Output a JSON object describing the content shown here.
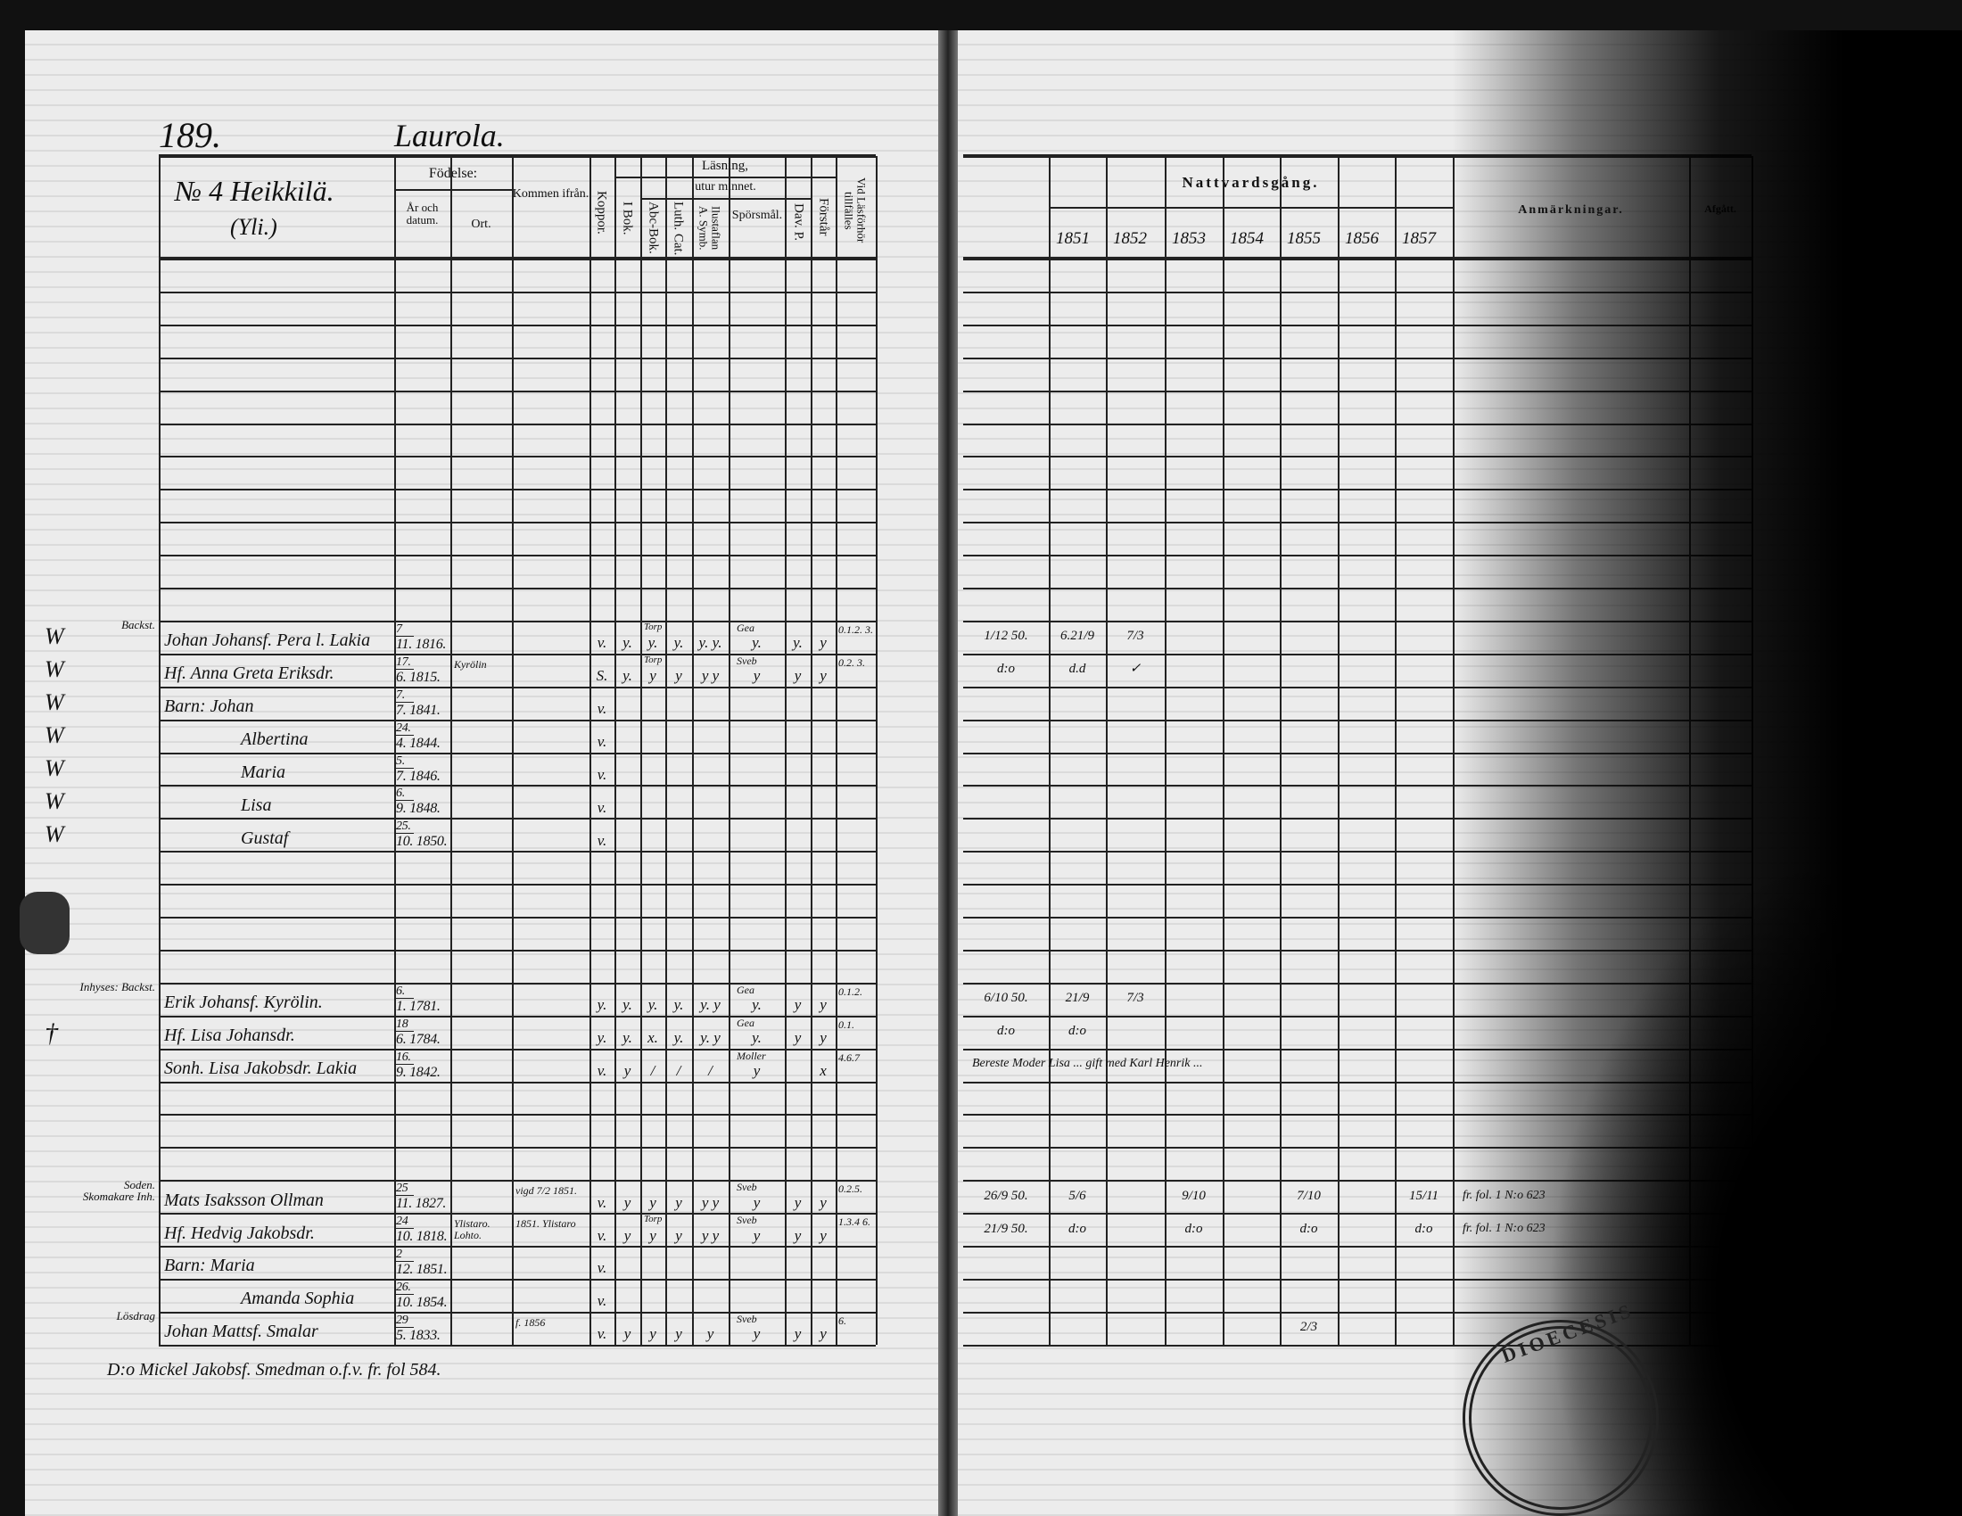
{
  "header": {
    "page_number": "189.",
    "parish_section": "Laurola.",
    "farm": "№ 4 Heikkilä.",
    "farm_sub": "(Yli.)"
  },
  "left_columns": {
    "fodelse": "Födelse:",
    "ar_och_datum": "År och datum.",
    "ort": "Ort.",
    "kommen_ifran": "Kommen ifrån.",
    "koppor": "Koppor.",
    "lasning": "Läsning,",
    "utur_minnet": "utur minnet.",
    "i_bok": "I Bok.",
    "abc_bok": "Abc-Bok.",
    "luth_cat": "Luth. Cat.",
    "ilustaflan": "Ilustaflan A. Symb.",
    "sporsmal": "Spörsmål.",
    "dav_p": "Dav. P.",
    "forstar": "Förstår",
    "vid_lasforhor": "Vid Läsförhör tillfälles"
  },
  "right_columns": {
    "nattvardsgang": "Nattvardsgång.",
    "years": [
      "1851",
      "1852",
      "1853",
      "1854",
      "1855",
      "1856",
      "1857"
    ],
    "anmarkningar": "Anmärkningar.",
    "afgatt": "Afgått."
  },
  "rows": [
    {
      "mark": "W",
      "role": "Backst.",
      "name": "Johan Johansf. Pera l. Lakia",
      "day": "7",
      "month_year": "11. 1816.",
      "ort": "",
      "from": "",
      "koppor": "v.",
      "reading": [
        "y.",
        "y.",
        "y.",
        "y. y.",
        "y.",
        "y.",
        "y"
      ],
      "notes_small": [
        "Torp",
        "Gea"
      ],
      "tillfalle": "0.1.2. 3.",
      "nattvard": [
        "1/12 50.",
        "6.21/9",
        "7/3",
        "",
        "",
        "",
        "",
        ""
      ],
      "anm": ""
    },
    {
      "mark": "W",
      "role": "",
      "name": "Hf. Anna Greta Eriksdr.",
      "day": "17.",
      "month_year": "6. 1815.",
      "ort": "Kyrölin",
      "from": "",
      "koppor": "S.",
      "reading": [
        "y.",
        "y",
        "y",
        "y y",
        "y",
        "y",
        "y"
      ],
      "notes_small": [
        "Torp",
        "Sveb"
      ],
      "tillfalle": "0.2. 3.",
      "nattvard": [
        "d:o",
        "d.d",
        "✓",
        "",
        "",
        "",
        "",
        ""
      ],
      "anm": ""
    },
    {
      "mark": "W",
      "role": "",
      "name": "Barn: Johan",
      "day": "7.",
      "month_year": "7. 1841.",
      "ort": "",
      "from": "",
      "koppor": "v.",
      "reading": [
        "",
        "",
        "",
        "",
        "",
        "",
        ""
      ],
      "notes_small": [
        "",
        ""
      ],
      "tillfalle": "",
      "nattvard": [
        "",
        "",
        "",
        "",
        "",
        "",
        "",
        ""
      ],
      "anm": ""
    },
    {
      "mark": "W",
      "role": "",
      "name": "Albertina",
      "day": "24.",
      "month_year": "4. 1844.",
      "ort": "",
      "from": "",
      "koppor": "v.",
      "reading": [
        "",
        "",
        "",
        "",
        "",
        "",
        ""
      ],
      "notes_small": [
        "",
        ""
      ],
      "tillfalle": "",
      "nattvard": [
        "",
        "",
        "",
        "",
        "",
        "",
        "",
        ""
      ],
      "anm": ""
    },
    {
      "mark": "W",
      "role": "",
      "name": "Maria",
      "day": "5.",
      "month_year": "7. 1846.",
      "ort": "",
      "from": "",
      "koppor": "v.",
      "reading": [
        "",
        "",
        "",
        "",
        "",
        "",
        ""
      ],
      "notes_small": [
        "",
        ""
      ],
      "tillfalle": "",
      "nattvard": [
        "",
        "",
        "",
        "",
        "",
        "",
        "",
        ""
      ],
      "anm": ""
    },
    {
      "mark": "W",
      "role": "",
      "name": "Lisa",
      "day": "6.",
      "month_year": "9. 1848.",
      "ort": "",
      "from": "",
      "koppor": "v.",
      "reading": [
        "",
        "",
        "",
        "",
        "",
        "",
        ""
      ],
      "notes_small": [
        "",
        ""
      ],
      "tillfalle": "",
      "nattvard": [
        "",
        "",
        "",
        "",
        "",
        "",
        "",
        ""
      ],
      "anm": ""
    },
    {
      "mark": "W",
      "role": "",
      "name": "Gustaf",
      "day": "25.",
      "month_year": "10. 1850.",
      "ort": "",
      "from": "",
      "koppor": "v.",
      "reading": [
        "",
        "",
        "",
        "",
        "",
        "",
        ""
      ],
      "notes_small": [
        "",
        ""
      ],
      "tillfalle": "",
      "nattvard": [
        "",
        "",
        "",
        "",
        "",
        "",
        "",
        ""
      ],
      "anm": ""
    },
    {
      "mark": "",
      "role": "Inhyses: Backst.",
      "name": "Erik Johansf. Kyrölin.",
      "day": "6.",
      "month_year": "1. 1781.",
      "ort": "",
      "from": "",
      "koppor": "y.",
      "reading": [
        "y.",
        "y.",
        "y.",
        "y. y",
        "y.",
        "y",
        "y"
      ],
      "notes_small": [
        "",
        "Gea"
      ],
      "tillfalle": "0.1.2.",
      "nattvard": [
        "6/10 50.",
        "21/9",
        "7/3",
        "",
        "",
        "",
        "",
        ""
      ],
      "anm": ""
    },
    {
      "mark": "†",
      "role": "",
      "name": "Hf. Lisa Johansdr.",
      "day": "18",
      "month_year": "6. 1784.",
      "ort": "",
      "from": "",
      "koppor": "y.",
      "reading": [
        "y.",
        "x.",
        "y.",
        "y. y",
        "y.",
        "y",
        "y"
      ],
      "notes_small": [
        "",
        "Gea"
      ],
      "tillfalle": "0.1.",
      "nattvard": [
        "d:o",
        "d:o",
        "",
        "",
        "",
        "",
        "",
        ""
      ],
      "anm": ""
    },
    {
      "mark": "",
      "role": "",
      "name": "Sonh. Lisa Jakobsdr. Lakia",
      "day": "16.",
      "month_year": "9. 1842.",
      "ort": "",
      "from": "",
      "koppor": "v.",
      "reading": [
        "y",
        "/",
        "/",
        "/",
        "y",
        "",
        "x"
      ],
      "notes_small": [
        "",
        "Moller"
      ],
      "tillfalle": "4.6.7",
      "nattvard": [
        "",
        "",
        "",
        "",
        "",
        "",
        "",
        ""
      ],
      "anm": "Bereste Moder Lisa ... gift med Karl Henrik ..."
    },
    {
      "mark": "",
      "role": "Soden. Skomakare Inh.",
      "name": "Mats Isaksson Ollman",
      "day": "25",
      "month_year": "11. 1827.",
      "ort": "",
      "from": "vigd 7/2 1851.",
      "koppor": "v.",
      "reading": [
        "y",
        "y",
        "y",
        "y y",
        "y",
        "y",
        "y"
      ],
      "notes_small": [
        "",
        "Sveb"
      ],
      "tillfalle": "0.2.5.",
      "nattvard": [
        "26/9 50.",
        "5/6",
        "",
        "9/10",
        "",
        "7/10",
        "",
        "15/11"
      ],
      "anm": "fr. fol. 1 N:o 623"
    },
    {
      "mark": "",
      "role": "",
      "name": "Hf. Hedvig Jakobsdr.",
      "day": "24",
      "month_year": "10. 1818.",
      "ort": "Ylistaro. Lohto.",
      "from": "1851. Ylistaro",
      "koppor": "v.",
      "reading": [
        "y",
        "y",
        "y",
        "y y",
        "y",
        "y",
        "y"
      ],
      "notes_small": [
        "Torp",
        "Sveb"
      ],
      "tillfalle": "1.3.4 6.",
      "nattvard": [
        "21/9 50.",
        "d:o",
        "",
        "d:o",
        "",
        "d:o",
        "",
        "d:o"
      ],
      "anm": "fr. fol. 1 N:o 623"
    },
    {
      "mark": "",
      "role": "",
      "name": "Barn: Maria",
      "day": "2",
      "month_year": "12. 1851.",
      "ort": "",
      "from": "",
      "koppor": "v.",
      "reading": [
        "",
        "",
        "",
        "",
        "",
        "",
        ""
      ],
      "notes_small": [
        "",
        ""
      ],
      "tillfalle": "",
      "nattvard": [
        "",
        "",
        "",
        "",
        "",
        "",
        "",
        ""
      ],
      "anm": ""
    },
    {
      "mark": "",
      "role": "",
      "name": "Amanda Sophia",
      "day": "26.",
      "month_year": "10. 1854.",
      "ort": "",
      "from": "",
      "koppor": "v.",
      "reading": [
        "",
        "",
        "",
        "",
        "",
        "",
        ""
      ],
      "notes_small": [
        "",
        ""
      ],
      "tillfalle": "",
      "nattvard": [
        "",
        "",
        "",
        "",
        "",
        "",
        "",
        ""
      ],
      "anm": ""
    },
    {
      "mark": "",
      "role": "Lösdrag",
      "name": "Johan Mattsf. Smalar",
      "day": "29",
      "month_year": "5. 1833.",
      "ort": "",
      "from": "f. 1856",
      "koppor": "v.",
      "reading": [
        "y",
        "y",
        "y",
        "y",
        "y",
        "y",
        "y"
      ],
      "notes_small": [
        "",
        "Sveb"
      ],
      "tillfalle": "6.",
      "nattvard": [
        "",
        "",
        "",
        "",
        "",
        "2/3",
        "",
        ""
      ],
      "anm": ""
    }
  ],
  "footer_note": "D:o Mickel Jakobsf. Smedman o.f.v. fr. fol 584.",
  "stamp": "DIOECESIS"
}
